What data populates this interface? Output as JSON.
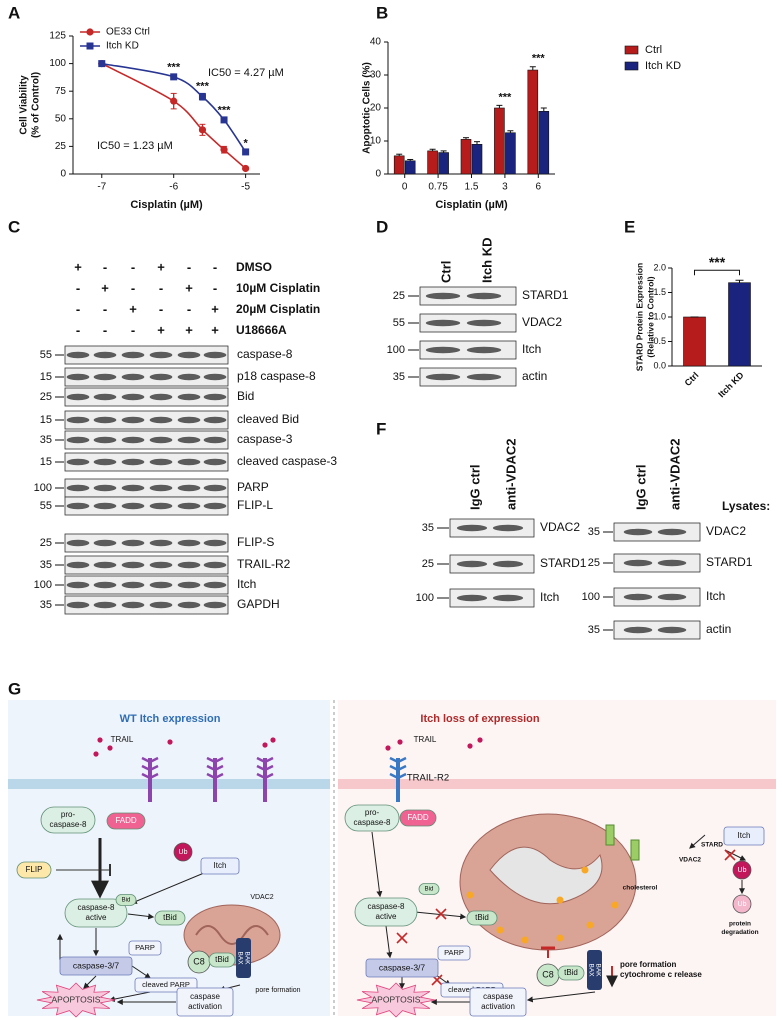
{
  "panel_labels": [
    "A",
    "B",
    "C",
    "D",
    "E",
    "F",
    "G"
  ],
  "chart_data": [
    {
      "type": "line",
      "x_label": "Cisplatin (µM)",
      "y_label": [
        "Cell Viability",
        "(% of Control)"
      ],
      "x": [
        -7,
        -6,
        -5.6,
        -5.3,
        -5
      ],
      "series": [
        {
          "name": "OE33 Ctrl",
          "color": "#c62828",
          "marker": "circle",
          "values": [
            100,
            66,
            40,
            22,
            5
          ],
          "errors": [
            1,
            7,
            5,
            3,
            1
          ]
        },
        {
          "name": "Itch KD",
          "color": "#283593",
          "marker": "square",
          "values": [
            100,
            88,
            70,
            49,
            20
          ],
          "errors": [
            1,
            2,
            3,
            2,
            1
          ]
        }
      ],
      "xlim": [
        -7.4,
        -4.8
      ],
      "ylim": [
        0,
        125
      ],
      "xticks": [
        -7,
        -6,
        -5
      ],
      "yticks": [
        0,
        25,
        50,
        75,
        100,
        125
      ],
      "annotations": [
        {
          "text": "***",
          "x": -6
        },
        {
          "text": "***",
          "x": -5.6
        },
        {
          "text": "***",
          "x": -5.3
        },
        {
          "text": "*",
          "x": -5
        }
      ],
      "ic50_labels": [
        "IC50 = 4.27 µM",
        "IC50 = 1.23 µM"
      ],
      "legend": "upper left"
    },
    {
      "type": "bar",
      "x_label": "Cisplatin (µM)",
      "y_label": "Apoptotic Cells (%)",
      "categories": [
        "0",
        "0.75",
        "1.5",
        "3",
        "6"
      ],
      "series": [
        {
          "name": "Ctrl",
          "color": "#b71c1c",
          "values": [
            5.5,
            7,
            10.5,
            20,
            31.5
          ],
          "errors": [
            0.5,
            0.5,
            0.5,
            0.8,
            1
          ]
        },
        {
          "name": "Itch KD",
          "color": "#1a237e",
          "values": [
            4,
            6.5,
            9,
            12.5,
            19
          ],
          "errors": [
            0.4,
            0.5,
            0.8,
            0.6,
            1
          ]
        }
      ],
      "ylim": [
        0,
        40
      ],
      "yticks": [
        0,
        10,
        20,
        30,
        40
      ],
      "annotations": [
        {
          "text": "***",
          "category": "3"
        },
        {
          "text": "***",
          "category": "6"
        }
      ],
      "legend": "upper right"
    },
    {
      "type": "bar",
      "y_label": [
        "STARD Protein Expression",
        "(Relative to Control)"
      ],
      "categories": [
        "Ctrl",
        "Itch KD"
      ],
      "values": [
        1,
        1.7
      ],
      "errors": [
        0,
        0.05
      ],
      "colors": [
        "#b71c1c",
        "#1a237e"
      ],
      "ylim": [
        0,
        2
      ],
      "yticks": [
        {
          "value": 0,
          "label": "0.0"
        },
        0.5,
        {
          "value": 1,
          "label": "1.0"
        },
        1.5,
        {
          "value": 2,
          "label": "2.0"
        }
      ],
      "annotations": [
        {
          "text": "***"
        }
      ]
    }
  ],
  "blot_c": {
    "treatments": [
      {
        "name": "DMSO",
        "marks": [
          "+",
          "-",
          "-",
          "+",
          "-",
          "-"
        ]
      },
      {
        "name": "10µM Cisplatin",
        "marks": [
          "-",
          "+",
          "-",
          "-",
          "+",
          "-"
        ]
      },
      {
        "name": "20µM Cisplatin",
        "marks": [
          "-",
          "-",
          "+",
          "-",
          "-",
          "+"
        ]
      },
      {
        "name": "U18666A",
        "marks": [
          "-",
          "-",
          "-",
          "+",
          "+",
          "+"
        ]
      }
    ],
    "bands": [
      {
        "name": "caspase-8",
        "mw": 55
      },
      {
        "name": "p18 caspase-8",
        "mw": 15
      },
      {
        "name": "Bid",
        "mw": 25
      },
      {
        "name": "cleaved Bid",
        "mw": 15
      },
      {
        "name": "caspase-3",
        "mw": 35
      },
      {
        "name": "cleaved caspase-3",
        "mw": 15
      },
      {
        "name": "PARP",
        "mw": 100
      },
      {
        "name": "FLIP-L",
        "mw": 55
      },
      {
        "name": "FLIP-S",
        "mw": 25
      },
      {
        "name": "TRAIL-R2",
        "mw": 35
      },
      {
        "name": "Itch",
        "mw": 100
      },
      {
        "name": "GAPDH",
        "mw": 35
      }
    ]
  },
  "blot_d": {
    "lanes": [
      "Ctrl",
      "Itch KD"
    ],
    "bands": [
      {
        "name": "STARD1",
        "mw": 25
      },
      {
        "name": "VDAC2",
        "mw": 55
      },
      {
        "name": "Itch",
        "mw": 100
      },
      {
        "name": "actin",
        "mw": 35
      }
    ]
  },
  "blot_f": {
    "ip": {
      "lanes": [
        "IgG ctrl",
        "anti-VDAC2"
      ],
      "bands": [
        {
          "name": "VDAC2",
          "mw": 35
        },
        {
          "name": "STARD1",
          "mw": 25
        },
        {
          "name": "Itch",
          "mw": 100
        }
      ]
    },
    "lysates": {
      "title": "Lysates:",
      "lanes": [
        "IgG ctrl",
        "anti-VDAC2"
      ],
      "bands": [
        {
          "name": "VDAC2",
          "mw": 35
        },
        {
          "name": "STARD1",
          "mw": 25
        },
        {
          "name": "Itch",
          "mw": 100
        },
        {
          "name": "actin",
          "mw": 35
        }
      ]
    }
  },
  "diagram": {
    "left": {
      "title": "WT Itch expression",
      "trail": "TRAIL",
      "pro_caspase": [
        "pro-",
        "caspase-8"
      ],
      "fadd": "FADD",
      "flip": "FLIP",
      "ub": "Ub",
      "itch": "Itch",
      "vdac2": "VDAC2",
      "casp8": [
        "caspase-8",
        "active"
      ],
      "bid": "Bid",
      "tbid": "tBid",
      "c8": "C8",
      "tbid_mito": "tBid",
      "bax": "BAX",
      "bak": "BAK",
      "pore": [
        "pore formation"
      ],
      "casp37": "caspase-3/7",
      "parp": "PARP",
      "cleaved_parp": "cleaved PARP",
      "apoptosis": "APOPTOSIS",
      "casp_act": [
        "caspase",
        "activation"
      ]
    },
    "right": {
      "title": "Itch loss of expression",
      "trail": "TRAIL",
      "trail_r2": "TRAIL-R2",
      "pro_caspase": [
        "pro-",
        "caspase-8"
      ],
      "fadd": "FADD",
      "stard": "STARD",
      "vdac2": "VDAC2",
      "cholesterol": "cholesterol",
      "itch": "Itch",
      "ub": "Ub",
      "ub2": "Ub",
      "degradation": [
        "protein",
        "degradation"
      ],
      "casp8": [
        "caspase-8",
        "active"
      ],
      "bid": "Bid",
      "tbid": "tBid",
      "c8": "C8",
      "tbid_mito": "tBid",
      "bax": "BAX",
      "bak": "BAK",
      "pore": [
        "pore formation",
        "cytochrome c release"
      ],
      "casp37": "caspase-3/7",
      "parp": "PARP",
      "cleaved_parp": "cleaved PARP",
      "apoptosis": "APOPTOSIS",
      "casp_act": [
        "caspase",
        "activation"
      ]
    }
  }
}
